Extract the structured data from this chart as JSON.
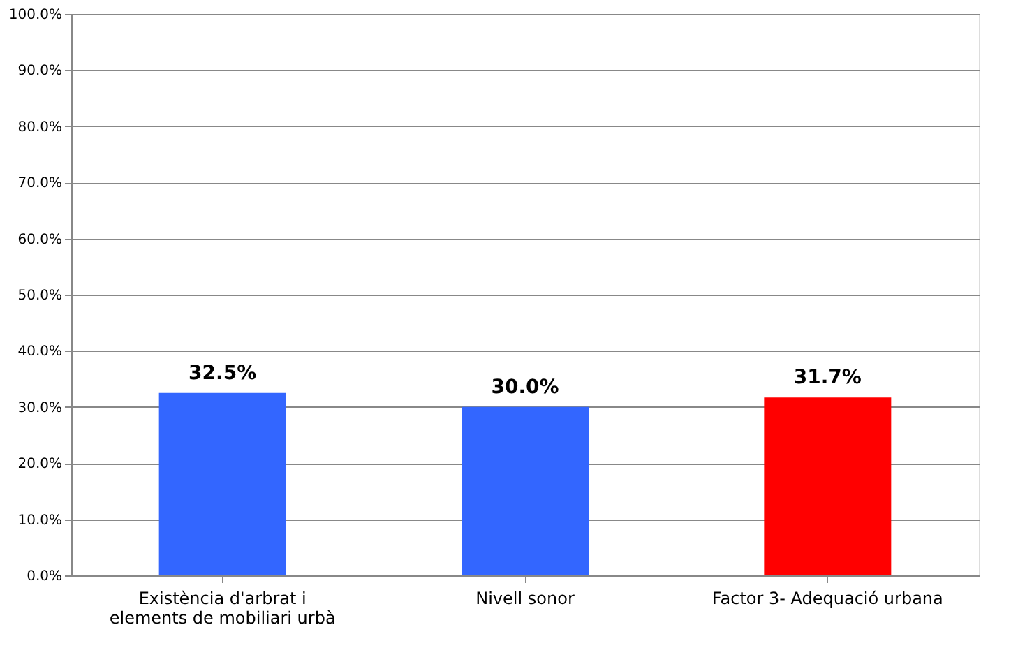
{
  "chart_data": {
    "type": "bar",
    "categories": [
      "Existència d'arbrat  i\nelements de mobiliari urbà",
      "Nivell sonor",
      "Factor 3- Adequació urbana"
    ],
    "values": [
      32.5,
      30.0,
      31.7
    ],
    "colors": [
      "#3366ff",
      "#3366ff",
      "#ff0000"
    ],
    "value_labels": [
      "32.5%",
      "30.0%",
      "31.7%"
    ],
    "ylim": [
      0,
      100
    ],
    "yticks": [
      {
        "value": 0,
        "label": "0.0%"
      },
      {
        "value": 10,
        "label": "10.0%"
      },
      {
        "value": 20,
        "label": "20.0%"
      },
      {
        "value": 30,
        "label": "30.0%"
      },
      {
        "value": 40,
        "label": "40.0%"
      },
      {
        "value": 50,
        "label": "50.0%"
      },
      {
        "value": 60,
        "label": "60.0%"
      },
      {
        "value": 70,
        "label": "70.0%"
      },
      {
        "value": 80,
        "label": "80.0%"
      },
      {
        "value": 90,
        "label": "90.0%"
      },
      {
        "value": 100,
        "label": "100.0%"
      }
    ],
    "grid": "y",
    "legend": false
  }
}
